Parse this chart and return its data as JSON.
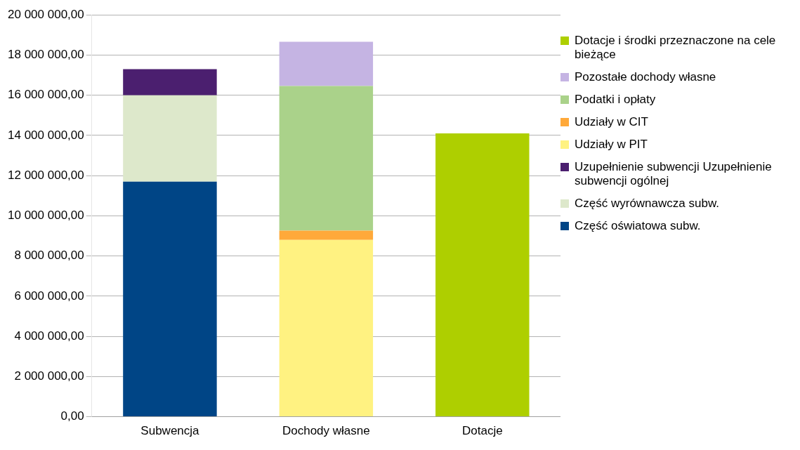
{
  "chart_data": {
    "type": "bar",
    "stacked": true,
    "categories": [
      "Subwencja",
      "Dochody własne",
      "Dotacje"
    ],
    "series": [
      {
        "name": "Część oświatowa subw.",
        "color": "#004586",
        "values": [
          11700000,
          null,
          null
        ]
      },
      {
        "name": "Część wyrównawcza subw.",
        "color": "#dde8cb",
        "values": [
          4300000,
          null,
          null
        ]
      },
      {
        "name": "Uzupełnienie subwencji Uzupełnienie subwencji ogólnej",
        "color": "#4b1f6f",
        "values": [
          1300000,
          null,
          null
        ]
      },
      {
        "name": "Udziały w PIT",
        "color": "#fff281",
        "values": [
          null,
          8800000,
          null
        ]
      },
      {
        "name": "Udziały w CIT",
        "color": "#ffa93a",
        "values": [
          null,
          460000,
          null
        ]
      },
      {
        "name": "Podatki i opłaty",
        "color": "#aad28a",
        "values": [
          null,
          7200000,
          null
        ]
      },
      {
        "name": "Pozostałe dochody własne",
        "color": "#c5b4e3",
        "values": [
          null,
          2200000,
          null
        ]
      },
      {
        "name": "Dotacje i środki przeznaczone na cele bieżące",
        "color": "#aecf00",
        "values": [
          null,
          null,
          14100000
        ]
      }
    ],
    "ylim": [
      0,
      20000000
    ],
    "yticks": [
      {
        "value": 0,
        "label": "0,00"
      },
      {
        "value": 2000000,
        "label": "2 000 000,00"
      },
      {
        "value": 4000000,
        "label": "4 000 000,00"
      },
      {
        "value": 6000000,
        "label": "6 000 000,00"
      },
      {
        "value": 8000000,
        "label": "8 000 000,00"
      },
      {
        "value": 10000000,
        "label": "10 000 000,00"
      },
      {
        "value": 12000000,
        "label": "12 000 000,00"
      },
      {
        "value": 14000000,
        "label": "14 000 000,00"
      },
      {
        "value": 16000000,
        "label": "16 000 000,00"
      },
      {
        "value": 18000000,
        "label": "18 000 000,00"
      },
      {
        "value": 20000000,
        "label": "20 000 000,00"
      }
    ],
    "grid": "y",
    "legend": "right"
  }
}
